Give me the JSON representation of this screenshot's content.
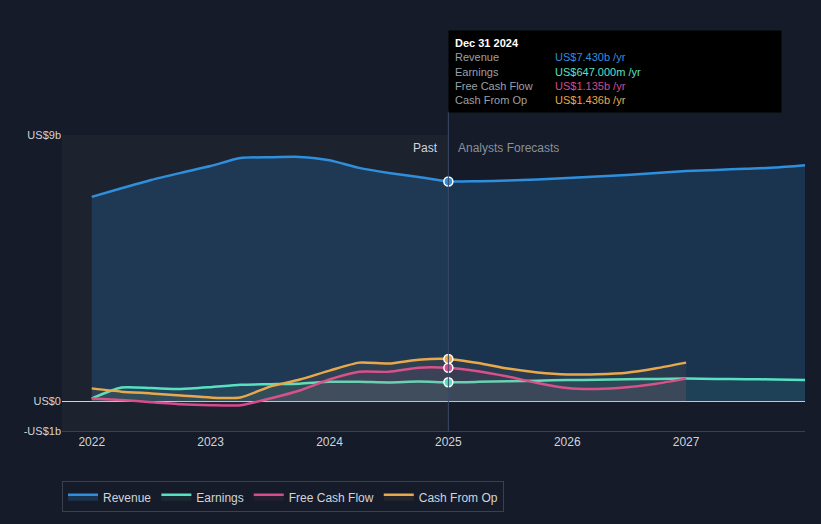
{
  "chart_data": {
    "type": "line",
    "x": [
      2022,
      2022.25,
      2022.5,
      2022.75,
      2023,
      2023.25,
      2023.5,
      2023.75,
      2024,
      2024.25,
      2024.5,
      2024.75,
      2025,
      2025.25,
      2025.5,
      2025.75,
      2026,
      2026.25,
      2026.5,
      2026.75,
      2027,
      2027.25,
      2027.5,
      2027.75,
      2028
    ],
    "series": [
      {
        "name": "Revenue",
        "color": "#2f8fdd",
        "values": [
          6.91,
          7.2,
          7.48,
          7.72,
          7.95,
          8.22,
          8.25,
          8.26,
          8.15,
          7.89,
          7.72,
          7.58,
          7.43,
          7.44,
          7.46,
          7.5,
          7.55,
          7.6,
          7.65,
          7.72,
          7.78,
          7.82,
          7.86,
          7.9,
          7.98
        ]
      },
      {
        "name": "Earnings",
        "color": "#58e1c1",
        "values": [
          0.1,
          0.47,
          0.45,
          0.42,
          0.48,
          0.56,
          0.58,
          0.6,
          0.66,
          0.66,
          0.64,
          0.67,
          0.647,
          0.66,
          0.68,
          0.7,
          0.72,
          0.73,
          0.75,
          0.76,
          0.77,
          0.76,
          0.75,
          0.74,
          0.72
        ]
      },
      {
        "name": "Free Cash Flow",
        "color": "#d64b8e",
        "values": [
          0.1,
          0.05,
          -0.03,
          -0.1,
          -0.13,
          -0.13,
          0.1,
          0.37,
          0.74,
          1.0,
          1.0,
          1.14,
          1.135,
          1.02,
          0.84,
          0.62,
          0.45,
          0.42,
          0.48,
          0.6,
          0.77,
          null,
          null,
          null,
          null
        ]
      },
      {
        "name": "Cash From Op",
        "color": "#e8a94c",
        "values": [
          0.44,
          0.33,
          0.27,
          0.2,
          0.13,
          0.13,
          0.5,
          0.74,
          1.04,
          1.31,
          1.28,
          1.41,
          1.436,
          1.3,
          1.11,
          0.98,
          0.91,
          0.92,
          0.97,
          1.12,
          1.31,
          null,
          null,
          null,
          null
        ]
      }
    ],
    "xlim": [
      2021.75,
      2028
    ],
    "xticks": [
      2022,
      2023,
      2024,
      2025,
      2026,
      2027
    ],
    "ylim": [
      -1,
      9
    ],
    "yticks": [
      {
        "value": -1,
        "label": "-US$1b"
      },
      {
        "value": 0,
        "label": "US$0"
      },
      {
        "value": 9,
        "label": "US$9b"
      }
    ],
    "grid": true,
    "legend": "bottom",
    "annotations": [
      {
        "text": "Past",
        "x": 2025,
        "side": "left"
      },
      {
        "text": "Analysts Forecasts",
        "x": 2025,
        "side": "right"
      }
    ],
    "tooltip": {
      "title": "Dec 31 2024",
      "x": 2025,
      "rows": [
        {
          "name": "Revenue",
          "label": "US$7.430b /yr"
        },
        {
          "name": "Earnings",
          "label": "US$647.000m /yr"
        },
        {
          "name": "Free Cash Flow",
          "label": "US$1.135b /yr"
        },
        {
          "name": "Cash From Op",
          "label": "US$1.436b /yr"
        }
      ]
    }
  }
}
